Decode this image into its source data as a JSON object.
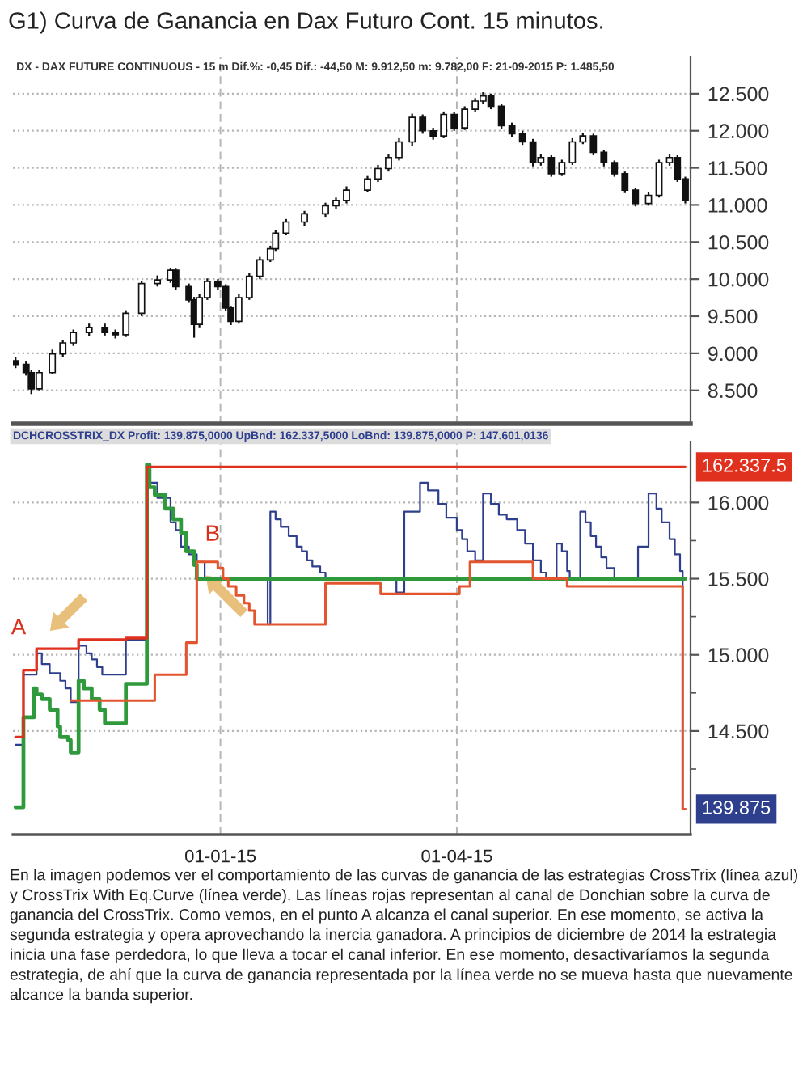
{
  "chart_data": [
    {
      "type": "candlestick",
      "title": "G1) Curva de Ganancia en Dax Futuro Cont. 15 minutos.",
      "subtitle": "DX - DAX FUTURE CONTINUOUS - 15 m Dif.%: -0,45 Dif.: -44,50 M: 9.912,50 m: 9.782,00 F: 21-09-2015 P: 1.485,50",
      "x": [
        "2014-10-15",
        "2014-10-19",
        "2014-10-21",
        "2014-10-24",
        "2014-10-29",
        "2014-11-02",
        "2014-11-06",
        "2014-11-12",
        "2014-11-18",
        "2014-11-22",
        "2014-11-26",
        "2014-12-02",
        "2014-12-08",
        "2014-12-13",
        "2014-12-15",
        "2014-12-20",
        "2014-12-22",
        "2014-12-24",
        "2014-12-27",
        "2014-12-31",
        "2015-01-03",
        "2015-01-05",
        "2015-01-08",
        "2015-01-12",
        "2015-01-16",
        "2015-01-20",
        "2015-01-22",
        "2015-01-26",
        "2015-02-02",
        "2015-02-10",
        "2015-02-14",
        "2015-02-18",
        "2015-02-26",
        "2015-03-02",
        "2015-03-06",
        "2015-03-10",
        "2015-03-15",
        "2015-03-19",
        "2015-03-23",
        "2015-03-27",
        "2015-03-31",
        "2015-04-04",
        "2015-04-08",
        "2015-04-11",
        "2015-04-14",
        "2015-04-18",
        "2015-04-22",
        "2015-04-26",
        "2015-04-30",
        "2015-05-03",
        "2015-05-07",
        "2015-05-11",
        "2015-05-15",
        "2015-05-19",
        "2015-05-23",
        "2015-05-27",
        "2015-05-31",
        "2015-06-04",
        "2015-06-08",
        "2015-06-13",
        "2015-06-17",
        "2015-06-21",
        "2015-06-24",
        "2015-06-27"
      ],
      "ohlc": [
        [
          8900,
          8950,
          8800,
          8850
        ],
        [
          8850,
          8900,
          8700,
          8740
        ],
        [
          8740,
          8780,
          8450,
          8520
        ],
        [
          8520,
          8780,
          8500,
          8740
        ],
        [
          8740,
          9050,
          8720,
          8990
        ],
        [
          8990,
          9180,
          8950,
          9140
        ],
        [
          9140,
          9320,
          9100,
          9280
        ],
        [
          9280,
          9400,
          9230,
          9350
        ],
        [
          9350,
          9400,
          9240,
          9280
        ],
        [
          9280,
          9320,
          9200,
          9250
        ],
        [
          9250,
          9580,
          9220,
          9540
        ],
        [
          9540,
          9980,
          9500,
          9940
        ],
        [
          9940,
          10050,
          9900,
          9990
        ],
        [
          9990,
          10150,
          9950,
          10120
        ],
        [
          10120,
          10140,
          9860,
          9900
        ],
        [
          9900,
          9940,
          9680,
          9720
        ],
        [
          9720,
          9760,
          9210,
          9390
        ],
        [
          9390,
          9800,
          9350,
          9750
        ],
        [
          9750,
          10010,
          9720,
          9970
        ],
        [
          9970,
          10000,
          9860,
          9900
        ],
        [
          9900,
          9930,
          9570,
          9610
        ],
        [
          9610,
          9640,
          9380,
          9430
        ],
        [
          9430,
          9800,
          9400,
          9750
        ],
        [
          9750,
          10080,
          9720,
          10040
        ],
        [
          10040,
          10300,
          10000,
          10260
        ],
        [
          10260,
          10450,
          10230,
          10410
        ],
        [
          10410,
          10660,
          10380,
          10620
        ],
        [
          10620,
          10810,
          10590,
          10770
        ],
        [
          10770,
          10920,
          10720,
          10880
        ],
        [
          10880,
          11030,
          10840,
          10990
        ],
        [
          10990,
          11100,
          10950,
          11060
        ],
        [
          11060,
          11250,
          11020,
          11200
        ],
        [
          11200,
          11390,
          11170,
          11350
        ],
        [
          11350,
          11540,
          11310,
          11490
        ],
        [
          11490,
          11680,
          11450,
          11640
        ],
        [
          11640,
          11900,
          11600,
          11850
        ],
        [
          11850,
          12230,
          11800,
          12180
        ],
        [
          12180,
          12220,
          11960,
          12000
        ],
        [
          12000,
          12040,
          11880,
          11930
        ],
        [
          11930,
          12260,
          11900,
          12220
        ],
        [
          12220,
          12250,
          12000,
          12040
        ],
        [
          12040,
          12330,
          12010,
          12290
        ],
        [
          12290,
          12440,
          12250,
          12400
        ],
        [
          12400,
          12520,
          12360,
          12470
        ],
        [
          12470,
          12500,
          12290,
          12330
        ],
        [
          12330,
          12360,
          12030,
          12070
        ],
        [
          12070,
          12110,
          11920,
          11960
        ],
        [
          11960,
          12000,
          11810,
          11850
        ],
        [
          11850,
          11890,
          11520,
          11570
        ],
        [
          11570,
          11680,
          11530,
          11640
        ],
        [
          11640,
          11670,
          11380,
          11420
        ],
        [
          11420,
          11610,
          11390,
          11570
        ],
        [
          11570,
          11900,
          11540,
          11850
        ],
        [
          11850,
          11970,
          11820,
          11930
        ],
        [
          11930,
          11960,
          11670,
          11710
        ],
        [
          11710,
          11740,
          11520,
          11570
        ],
        [
          11570,
          11600,
          11380,
          11420
        ],
        [
          11420,
          11450,
          11160,
          11200
        ],
        [
          11200,
          11230,
          10980,
          11020
        ],
        [
          11020,
          11170,
          10990,
          11130
        ],
        [
          11130,
          11610,
          11100,
          11570
        ],
        [
          11570,
          11680,
          11530,
          11640
        ],
        [
          11640,
          11670,
          11310,
          11350
        ],
        [
          11350,
          11380,
          11020,
          11060
        ]
      ],
      "xlim": [
        "2014-10-14",
        "2015-06-29"
      ],
      "xticks": [
        {
          "value": "2015-01-01",
          "label": null
        },
        {
          "value": "2015-04-01",
          "label": null
        }
      ],
      "ylim": [
        8050,
        13000
      ],
      "yticks": [
        {
          "value": 8500,
          "label": "8.500"
        },
        {
          "value": 9000,
          "label": "9.000"
        },
        {
          "value": 9500,
          "label": "9.500"
        },
        {
          "value": 10000,
          "label": "10.000"
        },
        {
          "value": 10500,
          "label": "10.500"
        },
        {
          "value": 11000,
          "label": "11.000"
        },
        {
          "value": 11500,
          "label": "11.500"
        },
        {
          "value": 12000,
          "label": "12.000"
        },
        {
          "value": 12500,
          "label": "12.500"
        }
      ],
      "tick_labels": "y",
      "grid": true
    },
    {
      "type": "step",
      "title": "DCHCROSSTRIX_DX Profit: 139.875,0000 UpBnd: 162.337,5000 LoBnd: 139.875,0000 P: 147.601,0136",
      "series": [
        {
          "color": "#2e3f8e",
          "x": [
            "2014-10-15",
            "2014-10-18",
            "2014-10-23",
            "2014-10-25",
            "2014-10-28",
            "2014-11-01",
            "2014-11-03",
            "2014-11-05",
            "2014-11-08",
            "2014-11-11",
            "2014-11-13",
            "2014-11-15",
            "2014-11-17",
            "2014-11-26",
            "2014-12-04",
            "2014-12-08",
            "2014-12-13",
            "2014-12-15",
            "2014-12-17",
            "2014-12-20",
            "2014-12-23",
            "2014-12-26",
            "2015-01-19",
            "2015-01-20",
            "2015-01-22",
            "2015-01-24",
            "2015-01-27",
            "2015-01-30",
            "2015-02-01",
            "2015-02-03",
            "2015-02-05",
            "2015-02-08",
            "2015-02-10",
            "2015-03-09",
            "2015-03-12",
            "2015-03-18",
            "2015-03-21",
            "2015-03-25",
            "2015-03-28",
            "2015-04-01",
            "2015-04-03",
            "2015-04-05",
            "2015-04-08",
            "2015-04-11",
            "2015-04-14",
            "2015-04-17",
            "2015-04-20",
            "2015-04-24",
            "2015-04-27",
            "2015-04-30",
            "2015-05-03",
            "2015-05-05",
            "2015-05-09",
            "2015-05-11",
            "2015-05-13",
            "2015-05-14",
            "2015-05-18",
            "2015-05-20",
            "2015-05-22",
            "2015-05-24",
            "2015-05-26",
            "2015-05-28",
            "2015-05-31",
            "2015-06-09",
            "2015-06-13",
            "2015-06-16",
            "2015-06-18",
            "2015-06-21",
            "2015-06-23",
            "2015-06-25",
            "2015-06-26",
            "2015-06-27"
          ],
          "values": [
            14410,
            14870,
            15010,
            14940,
            14880,
            14830,
            14780,
            14690,
            15060,
            15010,
            14970,
            14920,
            14870,
            15100,
            16130,
            16030,
            15870,
            15820,
            15710,
            15660,
            15610,
            15500,
            15200,
            15940,
            15890,
            15840,
            15780,
            15710,
            15680,
            15620,
            15580,
            15540,
            15500,
            15410,
            15940,
            16130,
            16080,
            15990,
            15900,
            15820,
            15760,
            15680,
            15620,
            16060,
            15990,
            15920,
            15890,
            15820,
            15730,
            15620,
            15540,
            15500,
            15730,
            15680,
            15550,
            15500,
            15940,
            15870,
            15780,
            15710,
            15640,
            15570,
            15500,
            15710,
            16060,
            15960,
            15870,
            15760,
            15660,
            15550,
            13987.5,
            13987.5
          ]
        },
        {
          "color": "#2f9a3c",
          "x": [
            "2014-10-15",
            "2014-10-18",
            "2014-10-22",
            "2014-10-23",
            "2014-10-25",
            "2014-10-28",
            "2014-10-31",
            "2014-11-01",
            "2014-11-04",
            "2014-11-05",
            "2014-11-08",
            "2014-11-10",
            "2014-11-13",
            "2014-11-16",
            "2014-11-18",
            "2014-11-26",
            "2014-12-04",
            "2014-12-05",
            "2014-12-07",
            "2014-12-11",
            "2014-12-14",
            "2014-12-17",
            "2014-12-19",
            "2014-12-22",
            "2014-12-23",
            "2015-06-27"
          ],
          "values": [
            14000,
            14590,
            14780,
            14740,
            14710,
            14640,
            14530,
            14460,
            14440,
            14360,
            14830,
            14780,
            14710,
            14640,
            14550,
            14810,
            16250,
            16100,
            16050,
            15960,
            15890,
            15800,
            15680,
            15590,
            15500,
            15500
          ]
        },
        {
          "color": "#e0301e",
          "x": [
            "2014-10-15",
            "2014-10-18",
            "2014-10-23",
            "2014-11-08",
            "2014-11-26",
            "2014-12-04",
            "2015-06-27"
          ],
          "values": [
            14460,
            14900,
            15040,
            15100,
            15110,
            16233.75,
            16233.75
          ],
          "value_labels": [
            null,
            null,
            null,
            null,
            null,
            null,
            "162.337.5"
          ]
        },
        {
          "color": "#e2552e",
          "x": [
            "2014-11-05",
            "2014-12-07",
            "2014-12-19",
            "2014-12-23",
            "2014-12-31",
            "2015-01-02",
            "2015-01-04",
            "2015-01-07",
            "2015-01-10",
            "2015-01-12",
            "2015-01-14",
            "2015-02-10",
            "2015-03-03",
            "2015-04-02",
            "2015-04-06",
            "2015-04-30",
            "2015-05-13",
            "2015-06-26",
            "2015-06-27"
          ],
          "values": [
            14700,
            14870,
            15080,
            15610,
            15570,
            15500,
            15450,
            15390,
            15340,
            15290,
            15200,
            15470,
            15400,
            15450,
            15610,
            15500,
            15450,
            13987.5,
            13987.5
          ]
        }
      ],
      "xlim": [
        "2014-10-14",
        "2015-06-29"
      ],
      "xticks": [
        {
          "value": "2015-01-01",
          "label": "01-01-15"
        },
        {
          "value": "2015-04-01",
          "label": "01-04-15"
        }
      ],
      "ylim": [
        13820,
        16400
      ],
      "yticks": [
        {
          "value": 14250,
          "label": null
        },
        {
          "value": 14500,
          "label": "14.500"
        },
        {
          "value": 14750,
          "label": null
        },
        {
          "value": 15000,
          "label": "15.000"
        },
        {
          "value": 15250,
          "label": null
        },
        {
          "value": 15500,
          "label": "15.500"
        },
        {
          "value": 15750,
          "label": null
        },
        {
          "value": 16000,
          "label": "16.000"
        }
      ],
      "grid": true,
      "annotations": [
        {
          "text": "A",
          "x": "2014-10-23",
          "y": 15040
        },
        {
          "text": "B",
          "x": "2014-12-23",
          "y": 15610
        },
        {
          "text": "139.875",
          "x": "2015-06-27",
          "y": 13987.5
        },
        "En la imagen podemos ver el comportamiento de las curvas de ganancia de las estrategias CrossTrix (línea azul) y CrossTrix With Eq.Curve (línea verde). Las líneas rojas representan al canal de Donchian sobre la curva de ganancia del CrossTrix. Como vemos, en el punto A alcanza el canal superior. En ese momento, se activa la segunda estrategia y opera aprovechando la inercia ganadora. A principios de diciembre de 2014 la estrategia inicia una fase perdedora, lo que lleva a tocar el canal inferior. En ese momento, desactivaríamos la segunda estrategia, de ahí que la curva de ganancia representada por la línea verde no se mueva hasta que nuevamente alcance la banda superior."
      ]
    }
  ]
}
